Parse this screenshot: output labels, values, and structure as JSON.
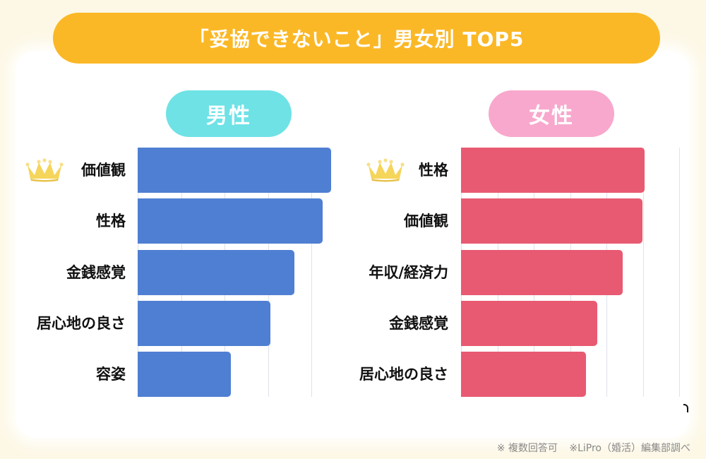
{
  "title": "「妥協できないこと」男女別 TOP5",
  "colors": {
    "banner": "#fbb826",
    "male_pill": "#6fe2e6",
    "female_pill": "#f8a8cd",
    "male_bar": "#4f7fd2",
    "female_bar": "#e85a72",
    "crown": "#f5d55a",
    "background": "#fdf8e6"
  },
  "male": {
    "header": "男性",
    "top_icon": "crown-icon",
    "items": [
      {
        "rank": 1,
        "label": "価値観"
      },
      {
        "rank": 2,
        "label": "性格"
      },
      {
        "rank": 3,
        "label": "金銭感覚"
      },
      {
        "rank": 4,
        "label": "居心地の良さ"
      },
      {
        "rank": 5,
        "label": "容姿"
      }
    ]
  },
  "female": {
    "header": "女性",
    "top_icon": "crown-icon",
    "items": [
      {
        "rank": 1,
        "label": "性格"
      },
      {
        "rank": 2,
        "label": "価値観"
      },
      {
        "rank": 3,
        "label": "年収/経済力"
      },
      {
        "rank": 4,
        "label": "金銭感覚"
      },
      {
        "rank": 5,
        "label": "居心地の良さ"
      }
    ]
  },
  "footer": {
    "note1": "※ 複数回答可",
    "note2": "※LiPro（婚活）編集部調べ"
  },
  "chart_data": [
    {
      "type": "bar",
      "orientation": "horizontal",
      "title": "男性",
      "categories": [
        "価値観",
        "性格",
        "金銭感覚",
        "居心地の良さ",
        "容姿"
      ],
      "values": [
        4.46,
        4.26,
        3.61,
        3.06,
        2.15
      ],
      "value_unit": "relative gridline units (no axis labels shown)",
      "xlabel": "",
      "ylabel": "",
      "xlim": [
        0,
        4.5
      ],
      "gridlines": [
        0,
        1,
        2,
        3,
        4
      ],
      "grid": true,
      "legend": "none",
      "color": "#4f7fd2"
    },
    {
      "type": "bar",
      "orientation": "horizontal",
      "title": "女性",
      "categories": [
        "性格",
        "価値観",
        "年収/経済力",
        "金銭感覚",
        "居心地の良さ"
      ],
      "values": [
        5.05,
        4.99,
        4.45,
        3.75,
        3.44
      ],
      "value_unit": "relative gridline units (no axis labels shown)",
      "xlabel": "",
      "ylabel": "",
      "xlim": [
        0,
        6
      ],
      "gridlines": [
        0,
        1,
        2,
        3,
        4,
        5,
        6
      ],
      "grid": true,
      "legend": "none",
      "color": "#e85a72"
    }
  ]
}
